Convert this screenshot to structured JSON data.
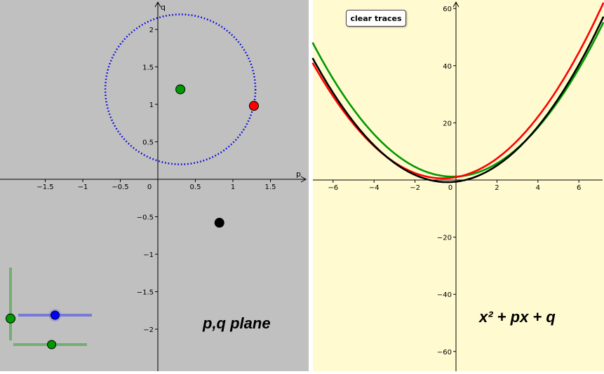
{
  "left_panel": {
    "label": "p,q plane",
    "axis_x_name": "p",
    "axis_y_name": "q",
    "x_ticks": [
      "−1.5",
      "−1",
      "−0.5",
      "0",
      "0.5",
      "1",
      "1.5"
    ],
    "y_ticks_pos": [
      "0.5",
      "1",
      "1.5",
      "2"
    ],
    "y_ticks_neg": [
      "−0.5",
      "−1",
      "−1.5",
      "−2"
    ],
    "circle_center": {
      "p": 0.3,
      "q": 1.2
    },
    "circle_radius": 1.0,
    "points": [
      {
        "name": "green-point",
        "p": 0.3,
        "q": 1.2,
        "color": "#009900"
      },
      {
        "name": "red-point",
        "p": 1.28,
        "q": 0.98,
        "color": "#ff0000"
      },
      {
        "name": "black-point",
        "p": 0.82,
        "q": -0.58,
        "color": "#000000"
      }
    ],
    "background": "#c0c0c0"
  },
  "right_panel": {
    "label": "x² + px + q",
    "clear_button": "clear traces",
    "x_ticks": [
      "−6",
      "−4",
      "−2",
      "0",
      "2",
      "4",
      "6"
    ],
    "y_ticks_pos": [
      "20",
      "40",
      "60"
    ],
    "y_ticks_neg": [
      "−20",
      "−40",
      "−60"
    ],
    "background": "#fffad0",
    "curves": [
      {
        "name": "green-parabola",
        "p": 0.3,
        "q": 1.2,
        "color": "#009900"
      },
      {
        "name": "red-parabola",
        "p": 1.28,
        "q": 0.98,
        "color": "#ff0000"
      },
      {
        "name": "black-parabola",
        "p": 0.82,
        "q": -0.58,
        "color": "#000000"
      }
    ]
  },
  "sliders": {
    "vertical_slider_value": 0.3,
    "blue_slider_value": 0.5,
    "green_slider_value": 0.52,
    "blue_color": "#0000ff",
    "green_color": "#009900"
  }
}
